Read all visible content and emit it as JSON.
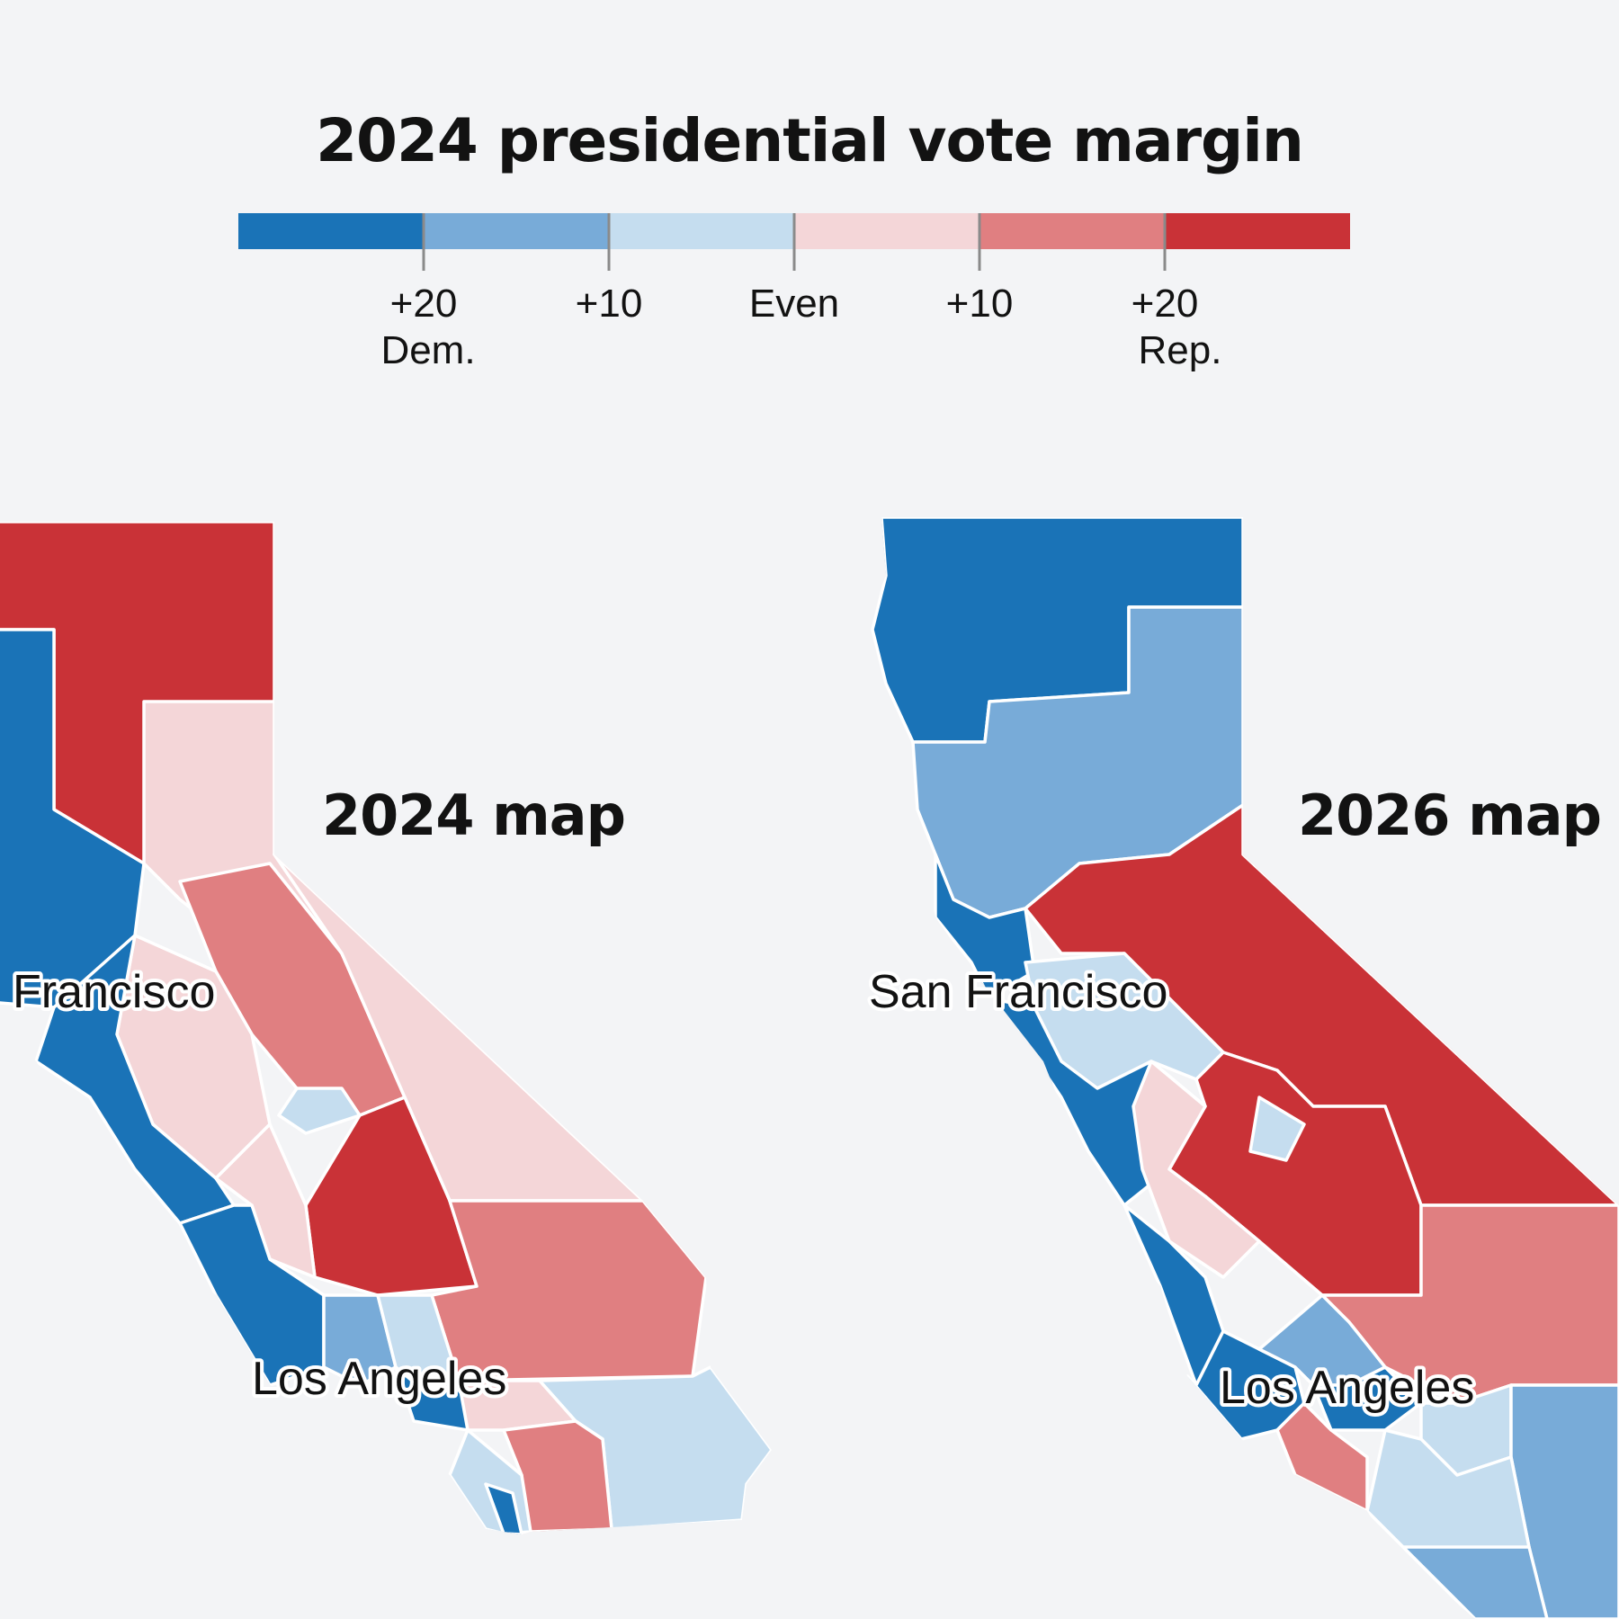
{
  "title": "2024 presidential vote margin",
  "colors": {
    "dem_strong": "#1a73b7",
    "dem_mid": "#78abd8",
    "dem_lean": "#c5ddef",
    "rep_lean": "#f4d6d8",
    "rep_mid": "#e07f81",
    "rep_strong": "#c93237"
  },
  "legend": {
    "bins": [
      "dem_strong",
      "dem_mid",
      "dem_lean",
      "rep_lean",
      "rep_mid",
      "rep_strong"
    ],
    "labels": [
      {
        "line1": "+20",
        "line2": "Dem."
      },
      {
        "line1": "+10",
        "line2": ""
      },
      {
        "line1": "Even",
        "line2": ""
      },
      {
        "line1": "+10",
        "line2": ""
      },
      {
        "line1": "+20",
        "line2": "Rep."
      }
    ]
  },
  "maps": [
    {
      "title": "2024 map",
      "cities": [
        "Francisco",
        "Los Angeles"
      ]
    },
    {
      "title": "2026 map",
      "cities": [
        "San Francisco",
        "Los Angeles"
      ]
    }
  ]
}
